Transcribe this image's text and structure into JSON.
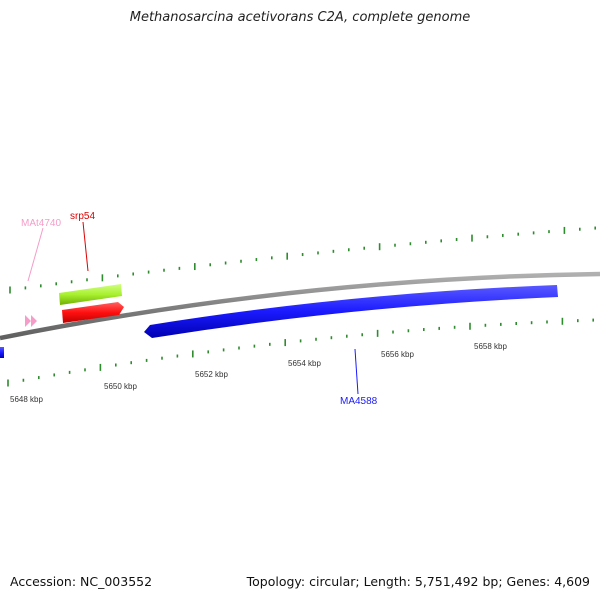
{
  "title": "Methanosarcina acetivorans C2A, complete genome",
  "footer": {
    "accession": "Accession: NC_003552",
    "topology": "Topology: circular; Length: 5,751,492 bp; Genes: 4,609"
  },
  "genes": [
    {
      "id": "MAt4740",
      "label": "MAt4740",
      "color": "#f59cc8",
      "kind": "tRNA"
    },
    {
      "id": "srp54",
      "label": "srp54",
      "color": "#ff1a1a",
      "kind": "CDS"
    },
    {
      "id": "srp54_bar",
      "label": "",
      "color": "#a8f030",
      "kind": "CDS-outline"
    },
    {
      "id": "MA4588",
      "label": "MA4588",
      "color": "#1a1aff",
      "kind": "CDS"
    },
    {
      "id": "left_partial",
      "label": "",
      "color": "#1a1aff",
      "kind": "CDS"
    }
  ],
  "ticks": [
    "5648 kbp",
    "5650 kbp",
    "5652 kbp",
    "5654 kbp",
    "5656 kbp",
    "5658 kbp"
  ],
  "colors": {
    "backbone": "#808080",
    "tick": "#2e8b2e",
    "label_text": "#333333"
  }
}
